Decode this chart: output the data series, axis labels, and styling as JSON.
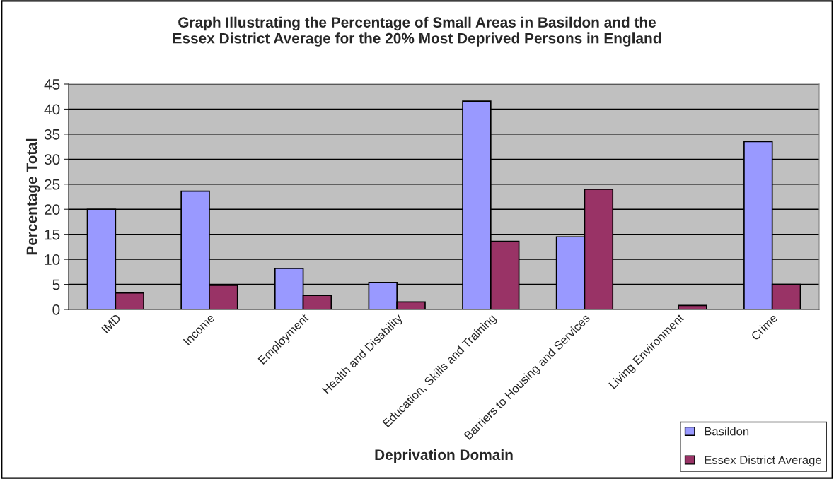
{
  "chart_data": {
    "type": "bar",
    "title": "Graph Illustrating the Percentage of Small Areas in Basildon and the\nEssex District Average for the 20% Most Deprived Persons in England",
    "xlabel": "Deprivation Domain",
    "ylabel": "Percentage Total",
    "categories": [
      "IMD",
      "Income",
      "Employment",
      "Health and Disability",
      "Education, Skills and Training",
      "Barriers to Housing and Services",
      "Living Environment",
      "Crime"
    ],
    "series": [
      {
        "name": "Basildon",
        "color": "#9999ff",
        "values": [
          20.0,
          23.6,
          8.2,
          5.4,
          41.6,
          14.5,
          null,
          33.5
        ]
      },
      {
        "name": "Essex District Average",
        "color": "#993366",
        "values": [
          3.3,
          4.8,
          2.8,
          1.5,
          13.6,
          24.0,
          0.8,
          5.0
        ]
      }
    ],
    "ylim": [
      0,
      45
    ],
    "yticks": [
      0,
      5,
      10,
      15,
      20,
      25,
      30,
      35,
      40,
      45
    ],
    "grid": "y",
    "legend": "bottom right"
  }
}
